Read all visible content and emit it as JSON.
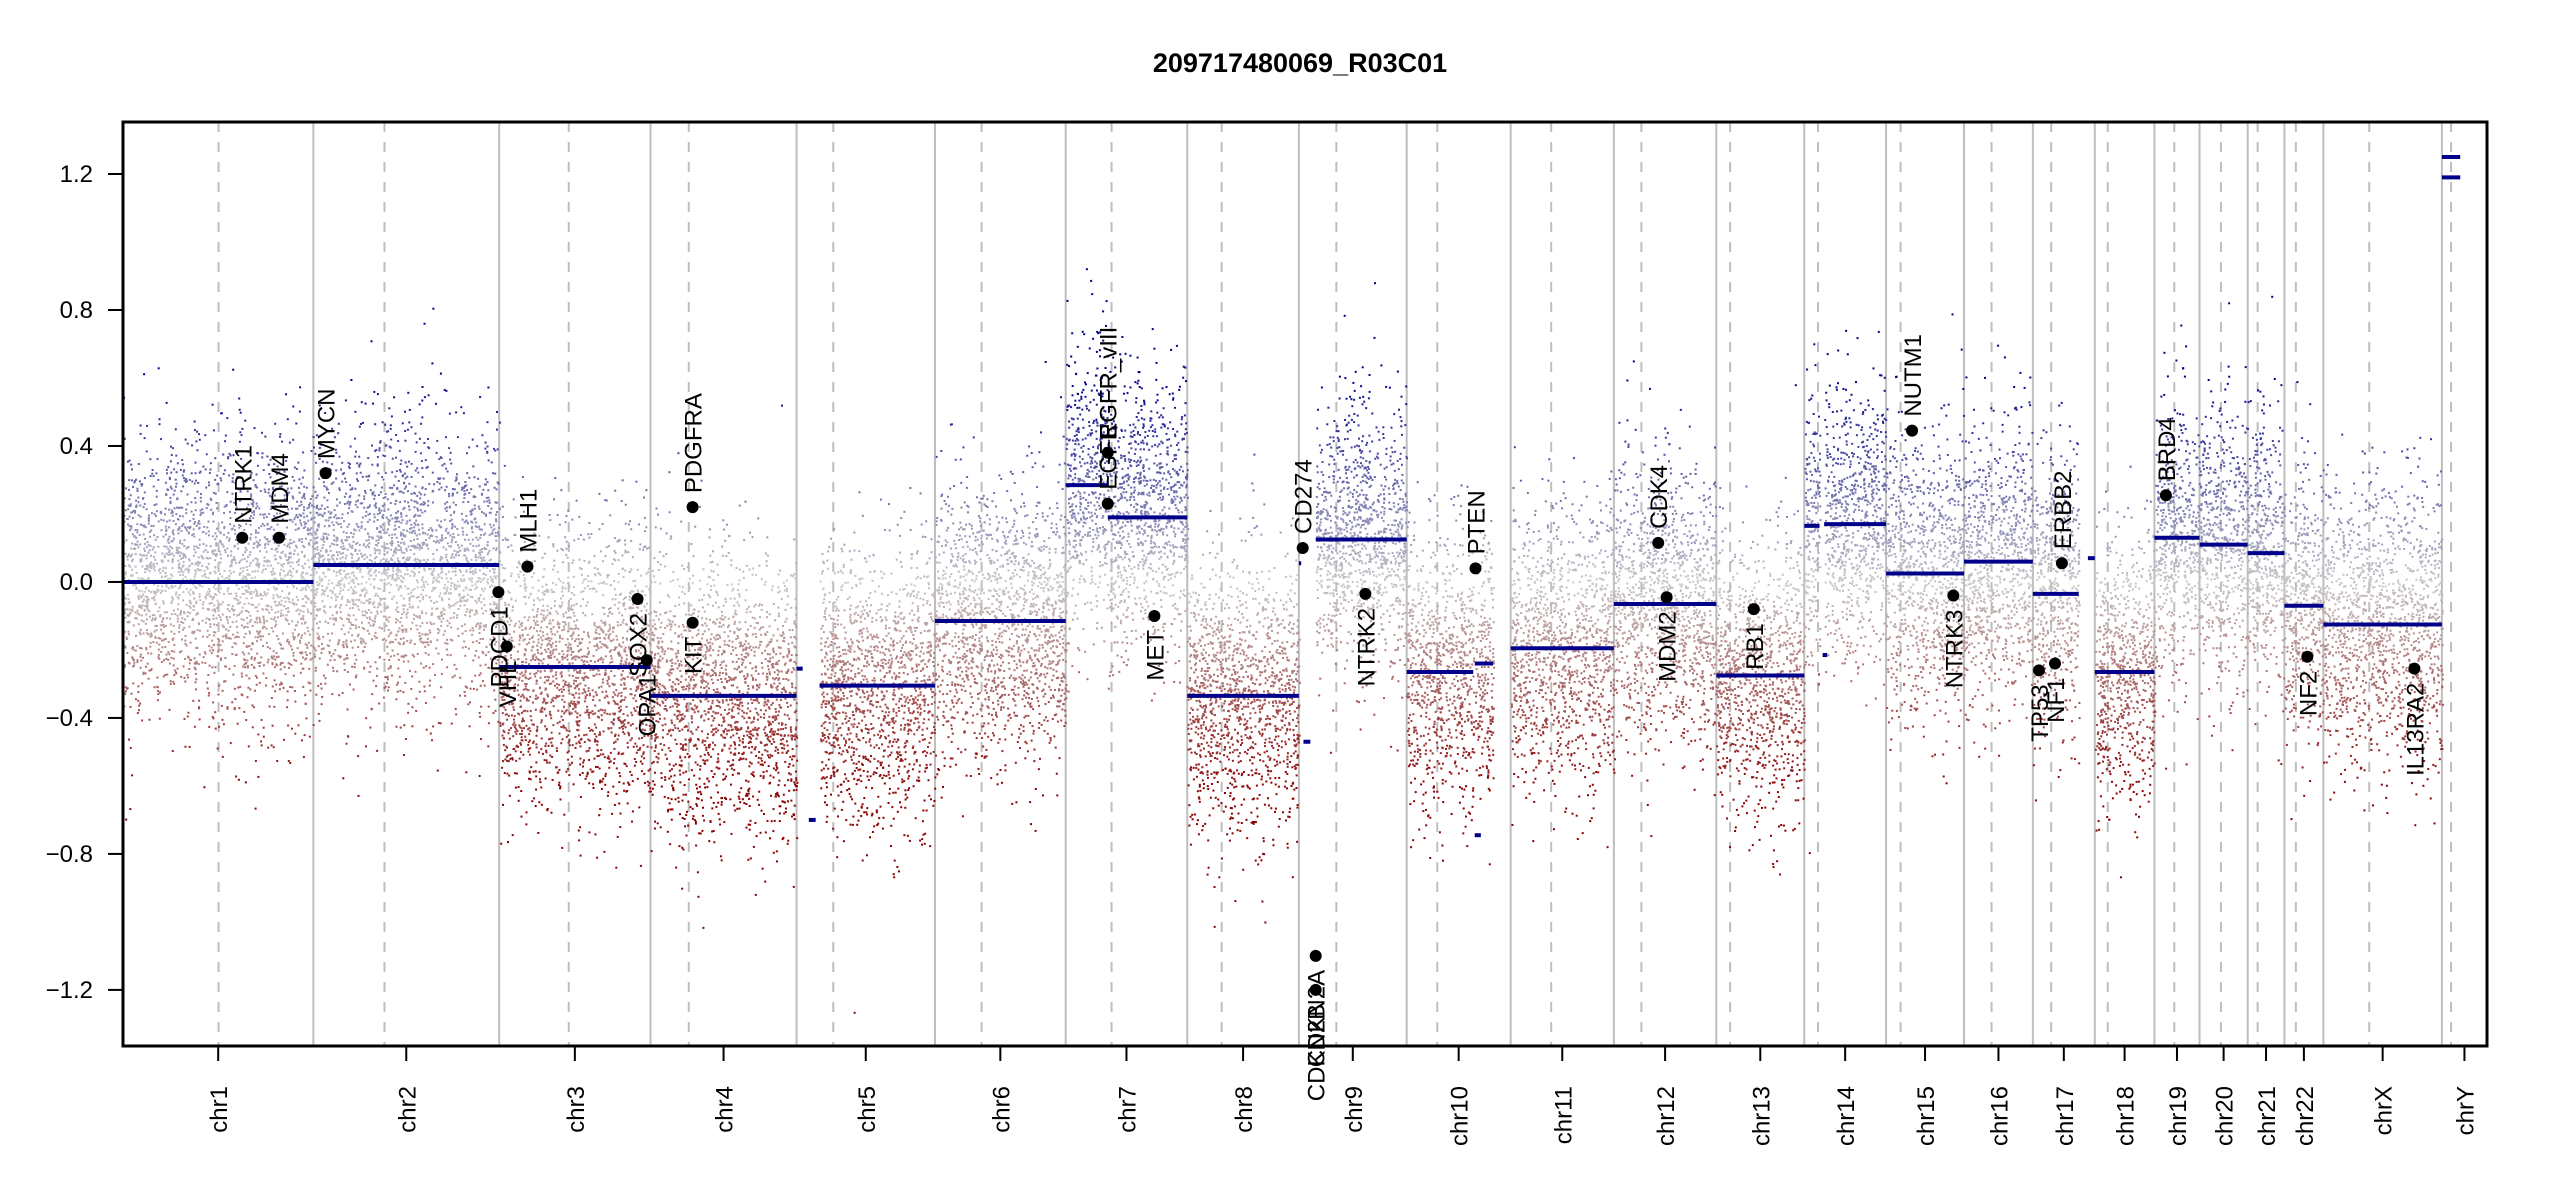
{
  "chart_data": {
    "type": "scatter",
    "title": "209717480069_R03C01",
    "xlabel": "",
    "ylabel": "",
    "ylim": [
      -1.365,
      1.353
    ],
    "yticks": [
      {
        "value": 1.2,
        "label": "1.2"
      },
      {
        "value": 0.8,
        "label": "0.8"
      },
      {
        "value": 0.4,
        "label": "0.4"
      },
      {
        "value": 0.0,
        "label": "0.0"
      },
      {
        "value": -0.4,
        "label": "−0.4"
      },
      {
        "value": -0.8,
        "label": "−0.8"
      },
      {
        "value": -1.2,
        "label": "−1.2"
      }
    ],
    "grid": "chromosome boundaries (solid grey) and centromeres (dashed grey)",
    "colors": {
      "gain": "#00008b",
      "neutral": "#c8c8c8",
      "loss": "#8b0000",
      "segment": "#00008b",
      "gene": "#000000",
      "boundary": "#bebebe"
    },
    "chromosomes": [
      {
        "name": "chr1",
        "label": "chr1",
        "length": 249,
        "centromere": 125
      },
      {
        "name": "chr2",
        "label": "chr2",
        "length": 243,
        "centromere": 93
      },
      {
        "name": "chr3",
        "label": "chr3",
        "length": 198,
        "centromere": 91
      },
      {
        "name": "chr4",
        "label": "chr4",
        "length": 191,
        "centromere": 50
      },
      {
        "name": "chr5",
        "label": "chr5",
        "length": 181,
        "centromere": 48
      },
      {
        "name": "chr6",
        "label": "chr6",
        "length": 171,
        "centromere": 61
      },
      {
        "name": "chr7",
        "label": "chr7",
        "length": 159,
        "centromere": 60
      },
      {
        "name": "chr8",
        "label": "chr8",
        "length": 146,
        "centromere": 45
      },
      {
        "name": "chr9",
        "label": "chr9",
        "length": 141,
        "centromere": 49
      },
      {
        "name": "chr10",
        "label": "chr10",
        "length": 136,
        "centromere": 40
      },
      {
        "name": "chr11",
        "label": "chr11",
        "length": 135,
        "centromere": 53
      },
      {
        "name": "chr12",
        "label": "chr12",
        "length": 134,
        "centromere": 36
      },
      {
        "name": "chr13",
        "label": "chr13",
        "length": 115,
        "centromere": 18
      },
      {
        "name": "chr14",
        "label": "chr14",
        "length": 107,
        "centromere": 18
      },
      {
        "name": "chr15",
        "label": "chr15",
        "length": 102,
        "centromere": 19
      },
      {
        "name": "chr16",
        "label": "chr16",
        "length": 90,
        "centromere": 36
      },
      {
        "name": "chr17",
        "label": "chr17",
        "length": 81,
        "centromere": 24
      },
      {
        "name": "chr18",
        "label": "chr18",
        "length": 78,
        "centromere": 17
      },
      {
        "name": "chr19",
        "label": "chr19",
        "length": 59,
        "centromere": 26
      },
      {
        "name": "chr20",
        "label": "chr20",
        "length": 63,
        "centromere": 28
      },
      {
        "name": "chr21",
        "label": "chr21",
        "length": 48,
        "centromere": 13
      },
      {
        "name": "chr22",
        "label": "chr22",
        "length": 51,
        "centromere": 15
      },
      {
        "name": "chrX",
        "label": "chrX",
        "length": 155,
        "centromere": 60
      },
      {
        "name": "chrY",
        "label": "chrY",
        "length": 59,
        "centromere": 12
      }
    ],
    "segments": [
      {
        "chr": "chr1",
        "start": 0,
        "end": 249,
        "value": 0.0
      },
      {
        "chr": "chr2",
        "start": 0,
        "end": 243,
        "value": 0.05
      },
      {
        "chr": "chr3",
        "start": 0,
        "end": 198,
        "value": -0.25
      },
      {
        "chr": "chr4",
        "start": 0,
        "end": 191,
        "value": -0.335
      },
      {
        "chr": "chr5",
        "start": 0,
        "end": 8,
        "value": -0.255
      },
      {
        "chr": "chr5",
        "start": 16,
        "end": 25,
        "value": -0.7
      },
      {
        "chr": "chr5",
        "start": 30,
        "end": 181,
        "value": -0.305
      },
      {
        "chr": "chr6",
        "start": 0,
        "end": 171,
        "value": -0.115
      },
      {
        "chr": "chr7",
        "start": 0,
        "end": 55,
        "value": 0.285
      },
      {
        "chr": "chr7",
        "start": 55,
        "end": 159,
        "value": 0.19
      },
      {
        "chr": "chr8",
        "start": 0,
        "end": 146,
        "value": -0.335
      },
      {
        "chr": "chr9",
        "start": 0,
        "end": 3,
        "value": 0.055
      },
      {
        "chr": "chr9",
        "start": 6,
        "end": 15,
        "value": -0.47
      },
      {
        "chr": "chr9",
        "start": 22,
        "end": 141,
        "value": 0.125
      },
      {
        "chr": "chr10",
        "start": 0,
        "end": 87,
        "value": -0.265
      },
      {
        "chr": "chr10",
        "start": 89,
        "end": 113,
        "value": -0.24
      },
      {
        "chr": "chr10",
        "start": 89,
        "end": 97,
        "value": -0.745
      },
      {
        "chr": "chr11",
        "start": 0,
        "end": 135,
        "value": -0.195
      },
      {
        "chr": "chr12",
        "start": 0,
        "end": 134,
        "value": -0.065
      },
      {
        "chr": "chr13",
        "start": 0,
        "end": 115,
        "value": -0.275
      },
      {
        "chr": "chr14",
        "start": 0,
        "end": 20,
        "value": 0.165
      },
      {
        "chr": "chr14",
        "start": 26,
        "end": 107,
        "value": 0.17
      },
      {
        "chr": "chr14",
        "start": 24,
        "end": 30,
        "value": -0.215
      },
      {
        "chr": "chr15",
        "start": 0,
        "end": 102,
        "value": 0.025
      },
      {
        "chr": "chr16",
        "start": 0,
        "end": 90,
        "value": 0.06
      },
      {
        "chr": "chr17",
        "start": 0,
        "end": 60,
        "value": -0.035
      },
      {
        "chr": "chr17",
        "start": 72,
        "end": 81,
        "value": 0.07
      },
      {
        "chr": "chr18",
        "start": 0,
        "end": 78,
        "value": -0.265
      },
      {
        "chr": "chr19",
        "start": 0,
        "end": 59,
        "value": 0.13
      },
      {
        "chr": "chr20",
        "start": 0,
        "end": 63,
        "value": 0.11
      },
      {
        "chr": "chr21",
        "start": 0,
        "end": 48,
        "value": 0.085
      },
      {
        "chr": "chr22",
        "start": 0,
        "end": 51,
        "value": -0.07
      },
      {
        "chrX": "chrX",
        "chr": "chrX",
        "start": 0,
        "end": 155,
        "value": -0.125
      },
      {
        "chr": "chrY",
        "start": 0,
        "end": 24,
        "value": 1.25
      },
      {
        "chr": "chrY",
        "start": 0,
        "end": 24,
        "value": 1.19
      }
    ],
    "genes": [
      {
        "name": "NTRK1",
        "chr": "chr1",
        "pos": 156,
        "value": 0.13,
        "label_side": "above"
      },
      {
        "name": "MDM4",
        "chr": "chr1",
        "pos": 204,
        "value": 0.13,
        "label_side": "above"
      },
      {
        "name": "MYCN",
        "chr": "chr2",
        "pos": 16,
        "value": 0.32,
        "label_side": "above"
      },
      {
        "name": "PDCD1",
        "chr": "chr2",
        "pos": 242,
        "value": -0.03,
        "label_side": "below"
      },
      {
        "name": "VHL",
        "chr": "chr3",
        "pos": 10,
        "value": -0.19,
        "label_side": "below"
      },
      {
        "name": "MLH1",
        "chr": "chr3",
        "pos": 37,
        "value": 0.045,
        "label_side": "above"
      },
      {
        "name": "SOX2",
        "chr": "chr3",
        "pos": 181,
        "value": -0.05,
        "label_side": "below"
      },
      {
        "name": "OPA1",
        "chr": "chr3",
        "pos": 193,
        "value": -0.23,
        "label_side": "below"
      },
      {
        "name": "KIT",
        "chr": "chr4",
        "pos": 55,
        "value": -0.12,
        "label_side": "below"
      },
      {
        "name": "PDGFRA",
        "chr": "chr4",
        "pos": 55,
        "value": 0.22,
        "label_side": "above"
      },
      {
        "name": "EGFR",
        "chr": "chr7",
        "pos": 55,
        "value": 0.23,
        "label_side": "above"
      },
      {
        "name": "EGFR_vIII",
        "chr": "chr7",
        "pos": 55,
        "value": 0.38,
        "label_side": "above"
      },
      {
        "name": "MET",
        "chr": "chr7",
        "pos": 116,
        "value": -0.1,
        "label_side": "below"
      },
      {
        "name": "CD274",
        "chr": "chr9",
        "pos": 5,
        "value": 0.1,
        "label_side": "above"
      },
      {
        "name": "CDKN2A",
        "chr": "chr9",
        "pos": 22,
        "value": -1.1,
        "label_side": "below"
      },
      {
        "name": "CDKN2B",
        "chr": "chr9",
        "pos": 22,
        "value": -1.2,
        "label_side": "below"
      },
      {
        "name": "NTRK2",
        "chr": "chr9",
        "pos": 87,
        "value": -0.035,
        "label_side": "below"
      },
      {
        "name": "PTEN",
        "chr": "chr10",
        "pos": 90,
        "value": 0.04,
        "label_side": "above"
      },
      {
        "name": "CDK4",
        "chr": "chr12",
        "pos": 58,
        "value": 0.115,
        "label_side": "above"
      },
      {
        "name": "MDM2",
        "chr": "chr12",
        "pos": 69,
        "value": -0.045,
        "label_side": "below"
      },
      {
        "name": "RB1",
        "chr": "chr13",
        "pos": 49,
        "value": -0.08,
        "label_side": "below"
      },
      {
        "name": "NUTM1",
        "chr": "chr15",
        "pos": 34,
        "value": 0.445,
        "label_side": "above"
      },
      {
        "name": "NTRK3",
        "chr": "chr15",
        "pos": 88,
        "value": -0.04,
        "label_side": "below"
      },
      {
        "name": "TP53",
        "chr": "chr17",
        "pos": 8,
        "value": -0.26,
        "label_side": "below"
      },
      {
        "name": "NF1",
        "chr": "chr17",
        "pos": 29,
        "value": -0.24,
        "label_side": "below"
      },
      {
        "name": "ERBB2",
        "chr": "chr17",
        "pos": 38,
        "value": 0.055,
        "label_side": "above"
      },
      {
        "name": "BRD4",
        "chr": "chr19",
        "pos": 15,
        "value": 0.255,
        "label_side": "above"
      },
      {
        "name": "NF2",
        "chr": "chr22",
        "pos": 30,
        "value": -0.22,
        "label_side": "below"
      },
      {
        "name": "IL13RA2",
        "chr": "chrX",
        "pos": 119,
        "value": -0.255,
        "label_side": "below"
      }
    ],
    "probe_density_note": "dense probe-level log2 ratio points coloured by value from red (loss) through grey to blue (gain)"
  }
}
